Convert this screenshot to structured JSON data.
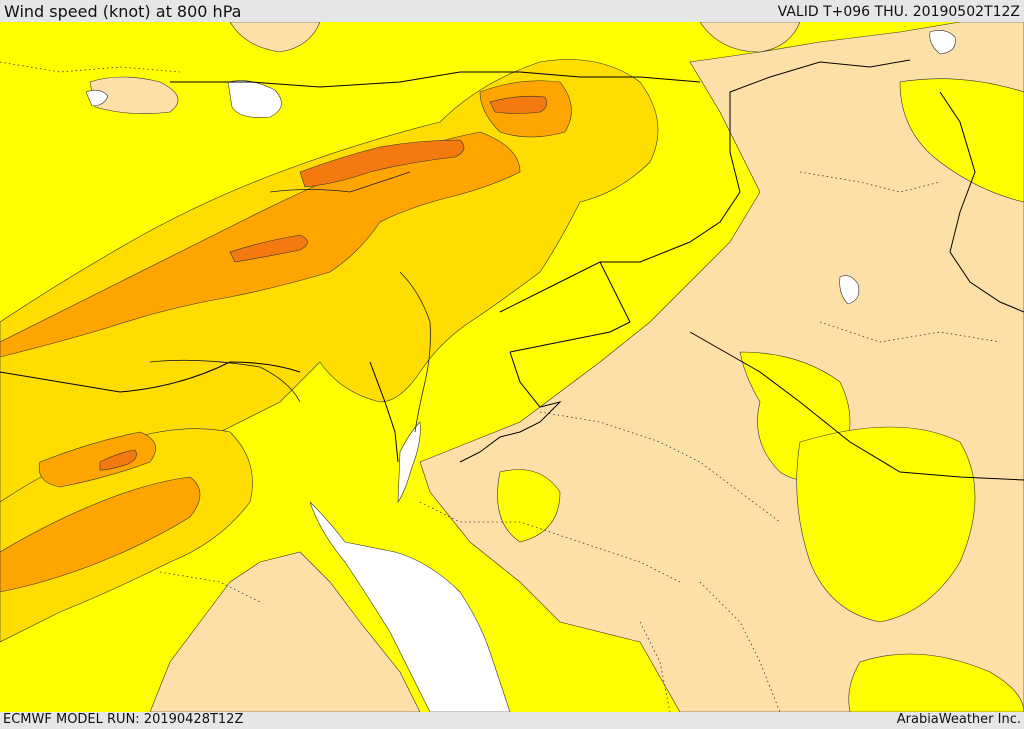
{
  "header": {
    "title": "Wind speed (knot) at 800 hPa",
    "valid": "VALID T+096 THU. 20190502T12Z"
  },
  "footer": {
    "model_run": "ECMWF MODEL RUN: 20190428T12Z",
    "provider": "ArabiaWeather Inc."
  },
  "map": {
    "colors": {
      "calm": "#fde0a8",
      "moderate": "#ffff00",
      "fresh": "#ffdd00",
      "strong": "#ffa500",
      "very_strong": "#f47a10",
      "water": "#ffffff",
      "boundary": "#000000"
    }
  }
}
